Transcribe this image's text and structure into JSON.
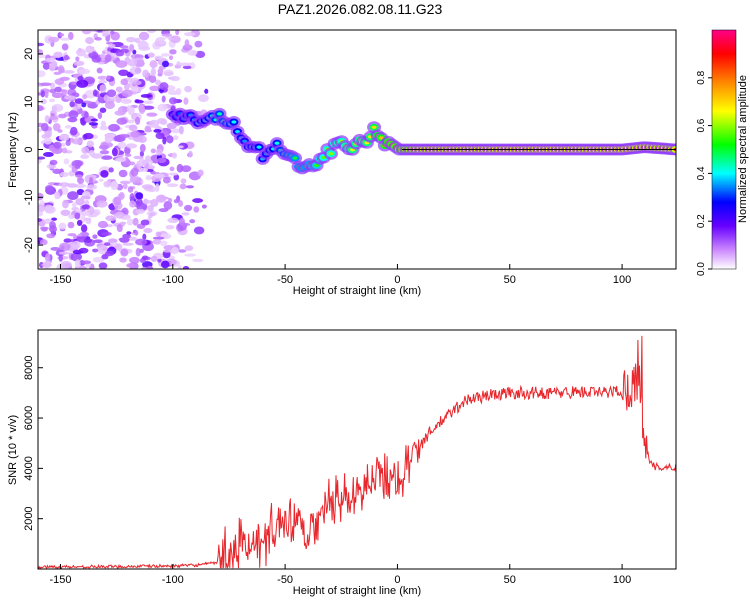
{
  "title": "PAZ1.2026.082.08.11.G23",
  "chart_data": [
    {
      "type": "heatmap",
      "title": "PAZ1.2026.082.08.11.G23",
      "xlabel": "Height of straight line (km)",
      "ylabel": "Frequency (Hz)",
      "xlim": [
        -160,
        124
      ],
      "ylim": [
        -25,
        25
      ],
      "xticks": [
        -150,
        -100,
        -50,
        0,
        50,
        100
      ],
      "yticks": [
        -20,
        -10,
        0,
        10,
        20
      ],
      "colorbar": {
        "label": "Normalized spectral amplitude",
        "range": [
          0,
          1
        ],
        "ticks": [
          0.0,
          0.2,
          0.4,
          0.6,
          0.8
        ],
        "colors": [
          "#ffffff",
          "#cc88ff",
          "#6600ff",
          "#0000ff",
          "#00ffff",
          "#00ff00",
          "#ffff00",
          "#ff8800",
          "#ff0000",
          "#ff0088"
        ]
      },
      "frequency_track": [
        {
          "x": -100,
          "f": 7,
          "amp": 0.3
        },
        {
          "x": -92,
          "f": 6.5,
          "amp": 0.35
        },
        {
          "x": -85,
          "f": 6,
          "amp": 0.4
        },
        {
          "x": -78,
          "f": 7,
          "amp": 0.45
        },
        {
          "x": -72,
          "f": 5,
          "amp": 0.4
        },
        {
          "x": -68,
          "f": 2,
          "amp": 0.35
        },
        {
          "x": -62,
          "f": 0,
          "amp": 0.4
        },
        {
          "x": -58,
          "f": -2,
          "amp": 0.35
        },
        {
          "x": -55,
          "f": 1,
          "amp": 0.4
        },
        {
          "x": -50,
          "f": -1,
          "amp": 0.45
        },
        {
          "x": -45,
          "f": -3,
          "amp": 0.5
        },
        {
          "x": -40,
          "f": -4,
          "amp": 0.5
        },
        {
          "x": -35,
          "f": -2,
          "amp": 0.55
        },
        {
          "x": -30,
          "f": 0,
          "amp": 0.6
        },
        {
          "x": -25,
          "f": 1,
          "amp": 0.6
        },
        {
          "x": -20,
          "f": 0.5,
          "amp": 0.65
        },
        {
          "x": -15,
          "f": 1.5,
          "amp": 0.65
        },
        {
          "x": -10,
          "f": 4,
          "amp": 0.7
        },
        {
          "x": -5,
          "f": 1,
          "amp": 0.75
        },
        {
          "x": 0,
          "f": 0,
          "amp": 0.8
        },
        {
          "x": 10,
          "f": 0,
          "amp": 0.9
        },
        {
          "x": 50,
          "f": 0,
          "amp": 0.92
        },
        {
          "x": 100,
          "f": 0,
          "amp": 0.92
        },
        {
          "x": 110,
          "f": 0.5,
          "amp": 0.9
        },
        {
          "x": 124,
          "f": 0,
          "amp": 0.9
        }
      ]
    },
    {
      "type": "line",
      "xlabel": "Height of straight line (km)",
      "ylabel": "SNR (10 * v/v)",
      "xlim": [
        -160,
        124
      ],
      "ylim": [
        0,
        9500
      ],
      "xticks": [
        -150,
        -100,
        -50,
        0,
        50,
        100
      ],
      "yticks": [
        2000,
        4000,
        6000,
        8000
      ],
      "series": [
        {
          "name": "SNR",
          "color": "#e8262b",
          "x": [
            -160,
            -140,
            -120,
            -100,
            -90,
            -80,
            -75,
            -70,
            -65,
            -60,
            -55,
            -50,
            -45,
            -40,
            -35,
            -30,
            -25,
            -20,
            -15,
            -10,
            -5,
            0,
            5,
            10,
            15,
            20,
            25,
            30,
            40,
            50,
            60,
            70,
            80,
            90,
            100,
            105,
            108,
            110,
            112,
            115,
            124
          ],
          "y": [
            80,
            90,
            100,
            120,
            150,
            250,
            600,
            900,
            1100,
            1200,
            1500,
            1700,
            1500,
            1600,
            2000,
            2600,
            2800,
            3100,
            3300,
            3500,
            3700,
            3600,
            4200,
            4900,
            5500,
            5900,
            6300,
            6700,
            6900,
            7000,
            7000,
            7000,
            7050,
            7000,
            7100,
            7300,
            7500,
            5000,
            4200,
            4050,
            4050
          ]
        }
      ]
    }
  ]
}
